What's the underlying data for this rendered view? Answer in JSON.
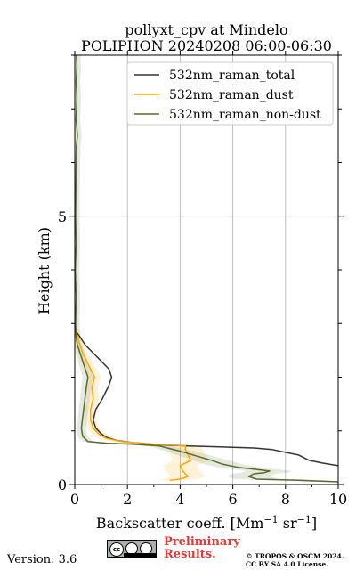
{
  "title_line1": "pollyxt_cpv at Mindelo",
  "title_line2": "POLIPHON 20240208 06:00-06:30",
  "version": "Version: 3.6",
  "preliminary_line1": "Preliminary",
  "preliminary_line2": "Results.",
  "copyright_line1": "© TROPOS & OSCM 2024.",
  "copyright_line2": "CC BY SA 4.0 License.",
  "colors": {
    "total": "#333333",
    "dust": "#ffa500",
    "nondust": "#556b2f",
    "grid": "#b0b0b0"
  },
  "chart_data": {
    "type": "line",
    "xlabel": "Backscatter coeff. [Mm",
    "xlabel_sup1": "−1",
    "xlabel_mid": " sr",
    "xlabel_sup2": "−1",
    "xlabel_end": "]",
    "ylabel": "Height (km)",
    "xlim": [
      0,
      10
    ],
    "ylim": [
      0,
      8
    ],
    "x_ticks": [
      0,
      2,
      4,
      6,
      8,
      10
    ],
    "y_ticks": [
      0,
      5
    ],
    "grid": true,
    "legend_position": "top-right",
    "series": [
      {
        "name": "532nm_raman_total",
        "color": "#333333",
        "points": [
          [
            10.0,
            0.35
          ],
          [
            9.4,
            0.4
          ],
          [
            8.9,
            0.45
          ],
          [
            8.7,
            0.5
          ],
          [
            8.5,
            0.55
          ],
          [
            8.0,
            0.6
          ],
          [
            7.5,
            0.65
          ],
          [
            6.8,
            0.68
          ],
          [
            5.5,
            0.7
          ],
          [
            4.2,
            0.72
          ],
          [
            3.2,
            0.74
          ],
          [
            2.2,
            0.78
          ],
          [
            1.6,
            0.82
          ],
          [
            1.2,
            0.88
          ],
          [
            1.0,
            0.95
          ],
          [
            0.8,
            1.05
          ],
          [
            0.7,
            1.2
          ],
          [
            0.8,
            1.4
          ],
          [
            1.05,
            1.6
          ],
          [
            1.3,
            1.85
          ],
          [
            1.4,
            2.0
          ],
          [
            1.3,
            2.15
          ],
          [
            1.0,
            2.3
          ],
          [
            0.7,
            2.45
          ],
          [
            0.4,
            2.6
          ],
          [
            0.2,
            2.75
          ],
          [
            0.05,
            2.85
          ],
          [
            0.0,
            2.95
          ]
        ]
      },
      {
        "name": "532nm_raman_dust",
        "color": "#ffa500",
        "points": [
          [
            3.6,
            0.08
          ],
          [
            4.0,
            0.1
          ],
          [
            4.3,
            0.15
          ],
          [
            4.1,
            0.25
          ],
          [
            4.0,
            0.35
          ],
          [
            4.4,
            0.45
          ],
          [
            4.3,
            0.55
          ],
          [
            4.2,
            0.65
          ],
          [
            4.2,
            0.72
          ],
          [
            3.6,
            0.74
          ],
          [
            2.6,
            0.76
          ],
          [
            1.8,
            0.8
          ],
          [
            1.2,
            0.86
          ],
          [
            0.9,
            0.95
          ],
          [
            0.7,
            1.05
          ],
          [
            0.6,
            1.2
          ],
          [
            0.6,
            1.4
          ],
          [
            0.7,
            1.6
          ],
          [
            0.65,
            1.8
          ],
          [
            0.75,
            2.0
          ],
          [
            0.6,
            2.15
          ],
          [
            0.45,
            2.3
          ],
          [
            0.3,
            2.45
          ],
          [
            0.2,
            2.6
          ],
          [
            0.1,
            2.75
          ],
          [
            0.0,
            2.9
          ]
        ]
      },
      {
        "name": "532nm_raman_non-dust",
        "color": "#556b2f",
        "points": [
          [
            10.0,
            0.05
          ],
          [
            8.5,
            0.08
          ],
          [
            6.9,
            0.1
          ],
          [
            6.6,
            0.15
          ],
          [
            6.8,
            0.2
          ],
          [
            7.2,
            0.22
          ],
          [
            7.4,
            0.25
          ],
          [
            6.9,
            0.28
          ],
          [
            6.2,
            0.32
          ],
          [
            5.6,
            0.38
          ],
          [
            5.2,
            0.45
          ],
          [
            4.7,
            0.52
          ],
          [
            4.0,
            0.62
          ],
          [
            3.2,
            0.72
          ],
          [
            2.2,
            0.75
          ],
          [
            1.2,
            0.77
          ],
          [
            0.5,
            0.8
          ],
          [
            0.3,
            0.9
          ],
          [
            0.25,
            1.05
          ],
          [
            0.3,
            1.25
          ],
          [
            0.35,
            1.45
          ],
          [
            0.4,
            1.65
          ],
          [
            0.45,
            1.85
          ],
          [
            0.5,
            2.0
          ],
          [
            0.4,
            2.15
          ],
          [
            0.3,
            2.3
          ],
          [
            0.2,
            2.45
          ],
          [
            0.1,
            2.6
          ],
          [
            0.05,
            2.75
          ],
          [
            0.03,
            3.0
          ],
          [
            0.05,
            3.5
          ],
          [
            0.02,
            4.0
          ],
          [
            0.05,
            4.5
          ],
          [
            0.03,
            5.0
          ],
          [
            0.04,
            5.5
          ],
          [
            0.05,
            6.0
          ],
          [
            0.06,
            6.3
          ],
          [
            0.1,
            6.5
          ],
          [
            0.05,
            6.8
          ],
          [
            0.08,
            7.2
          ],
          [
            0.05,
            7.5
          ],
          [
            0.08,
            7.8
          ],
          [
            0.06,
            8.0
          ]
        ]
      }
    ]
  }
}
